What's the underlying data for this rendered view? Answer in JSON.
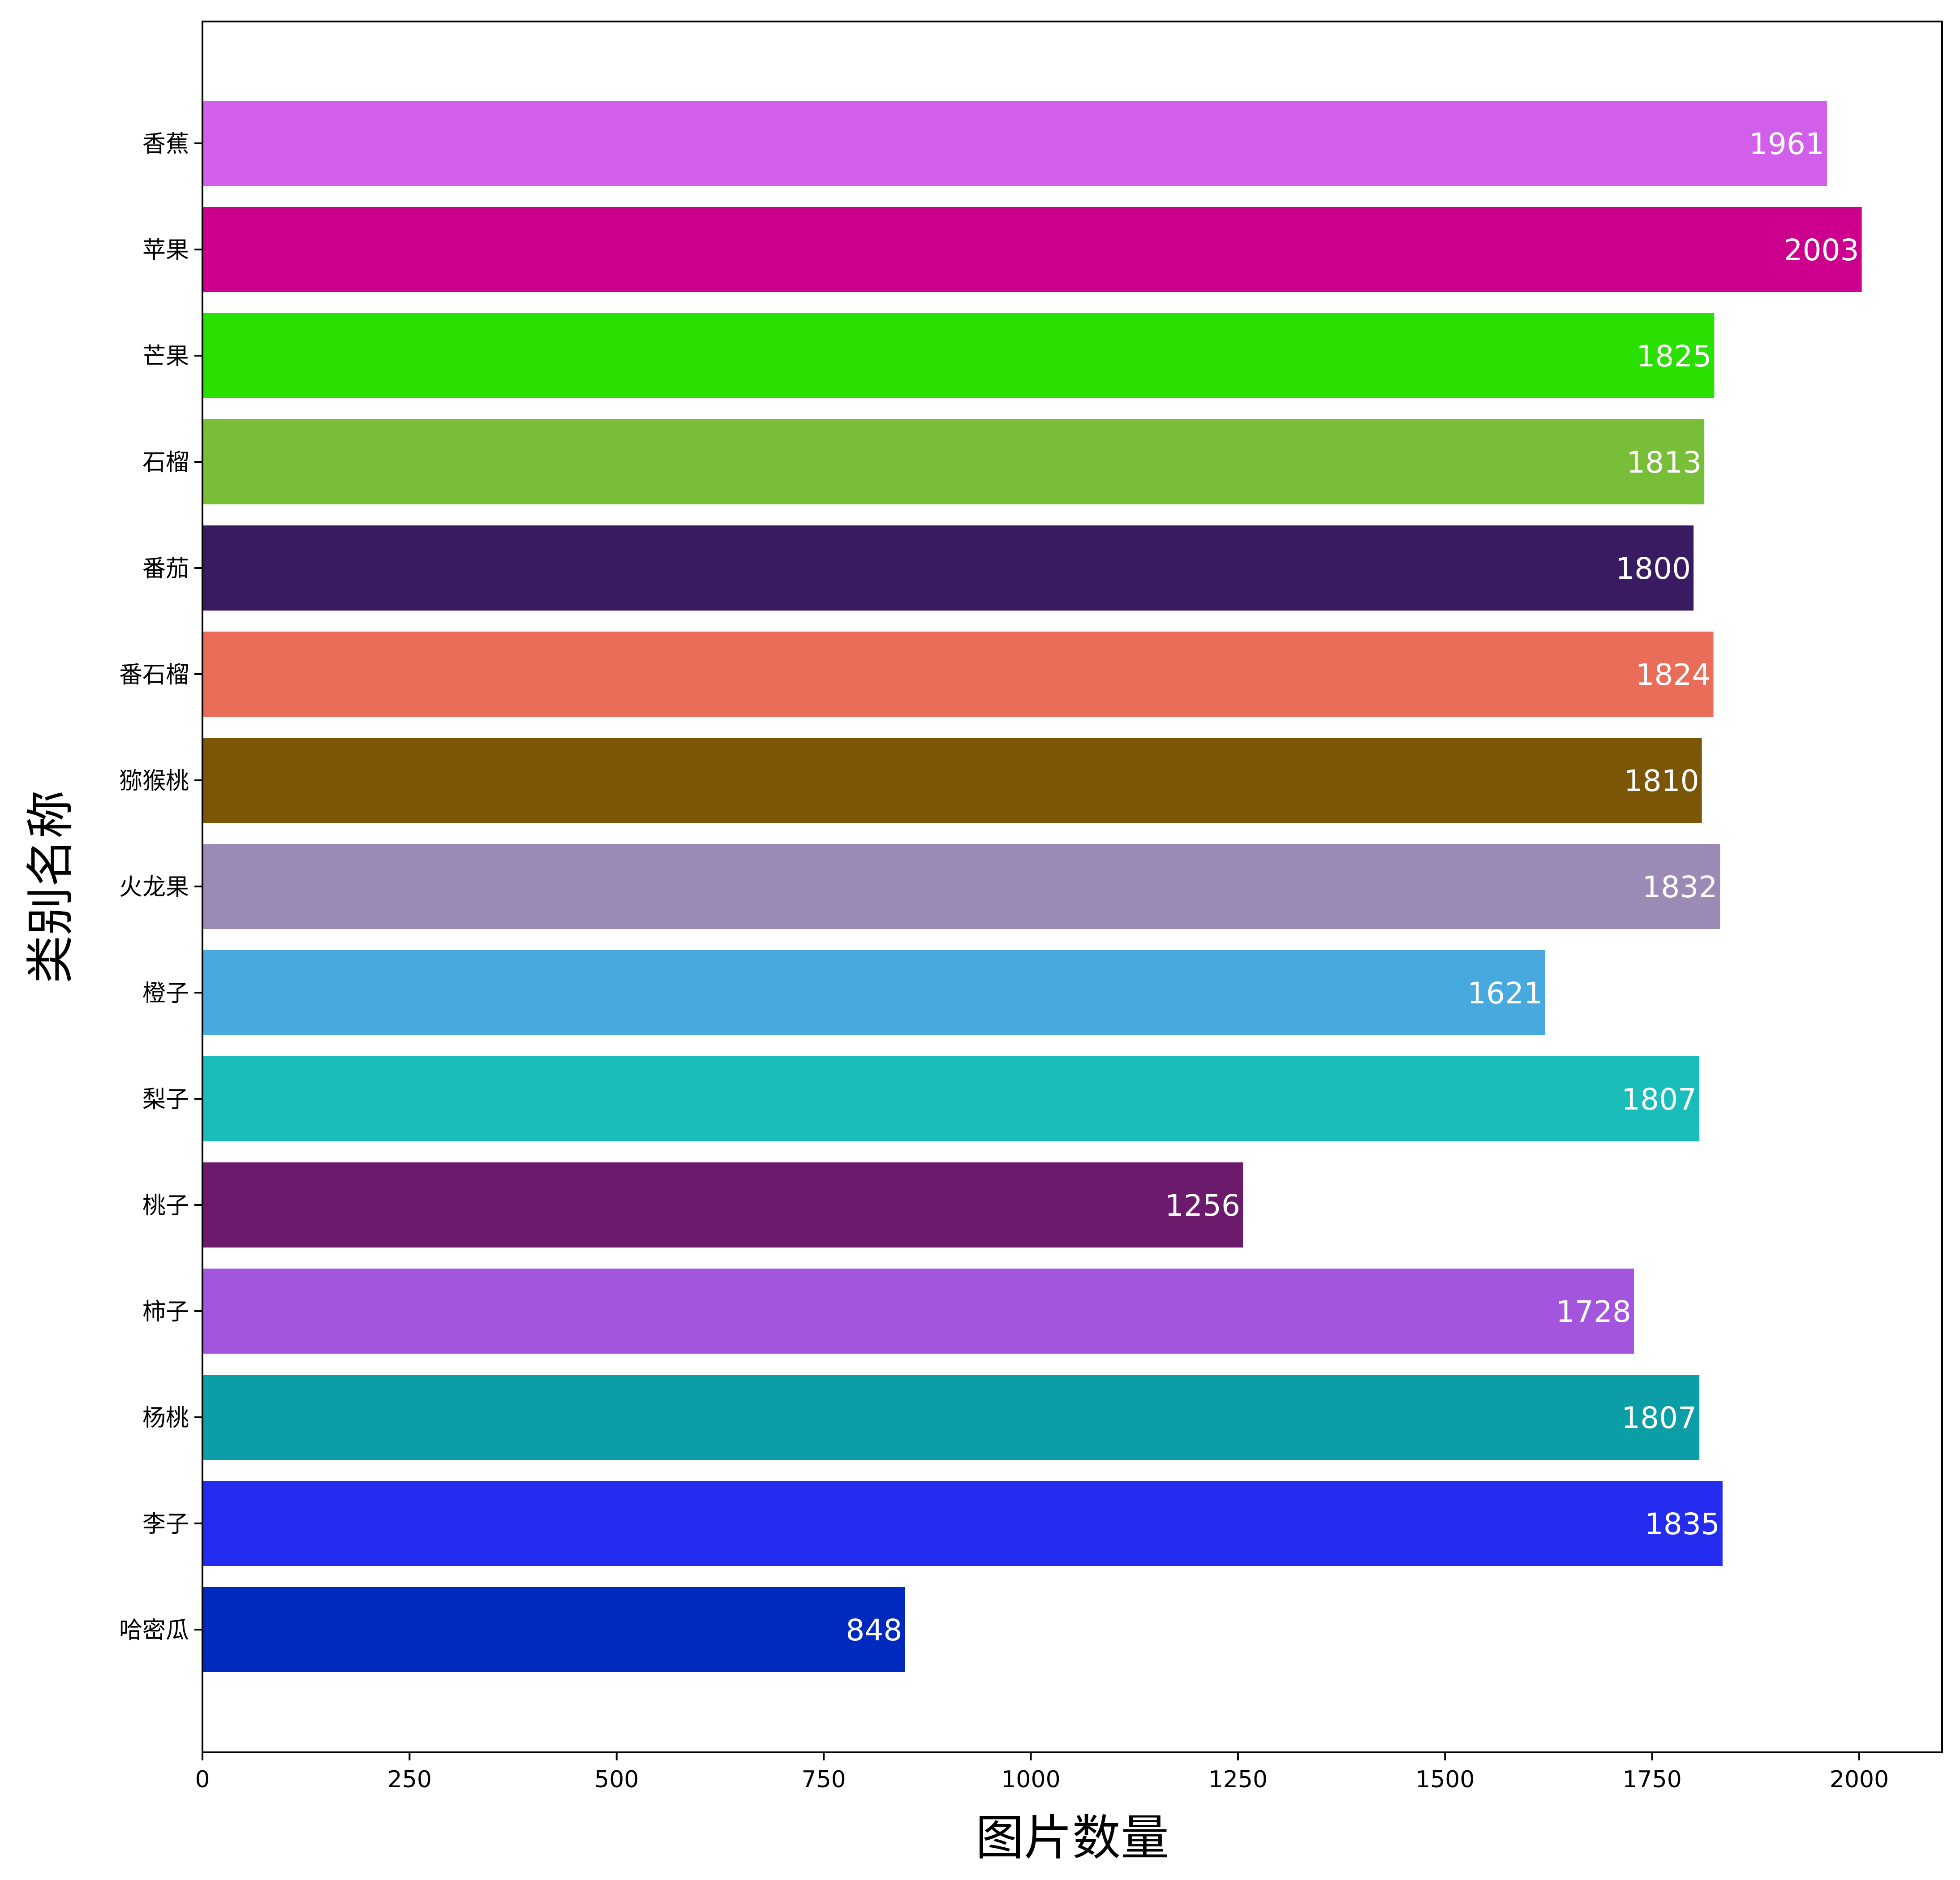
{
  "chart_data": {
    "type": "bar",
    "orientation": "horizontal",
    "title": "",
    "xlabel": "图片数量",
    "ylabel": "类别名称",
    "xlim": [
      0,
      2100
    ],
    "xticks": [
      0,
      250,
      500,
      750,
      1000,
      1250,
      1500,
      1750,
      2000
    ],
    "grid": false,
    "categories": [
      "香蕉",
      "苹果",
      "芒果",
      "石榴",
      "番茄",
      "番石榴",
      "猕猴桃",
      "火龙果",
      "橙子",
      "梨子",
      "桃子",
      "柿子",
      "杨桃",
      "李子",
      "哈密瓜"
    ],
    "values": [
      1961,
      2003,
      1825,
      1813,
      1800,
      1824,
      1810,
      1832,
      1621,
      1807,
      1256,
      1728,
      1807,
      1835,
      848
    ],
    "colors": [
      "#d15fe9",
      "#cc008c",
      "#2ae000",
      "#78be38",
      "#391b62",
      "#e96d58",
      "#7b5606",
      "#9c8ab6",
      "#47a9dd",
      "#1bbdbb",
      "#6c1a6c",
      "#a455dd",
      "#0b9ea6",
      "#242cf0",
      "#002abe"
    ]
  }
}
